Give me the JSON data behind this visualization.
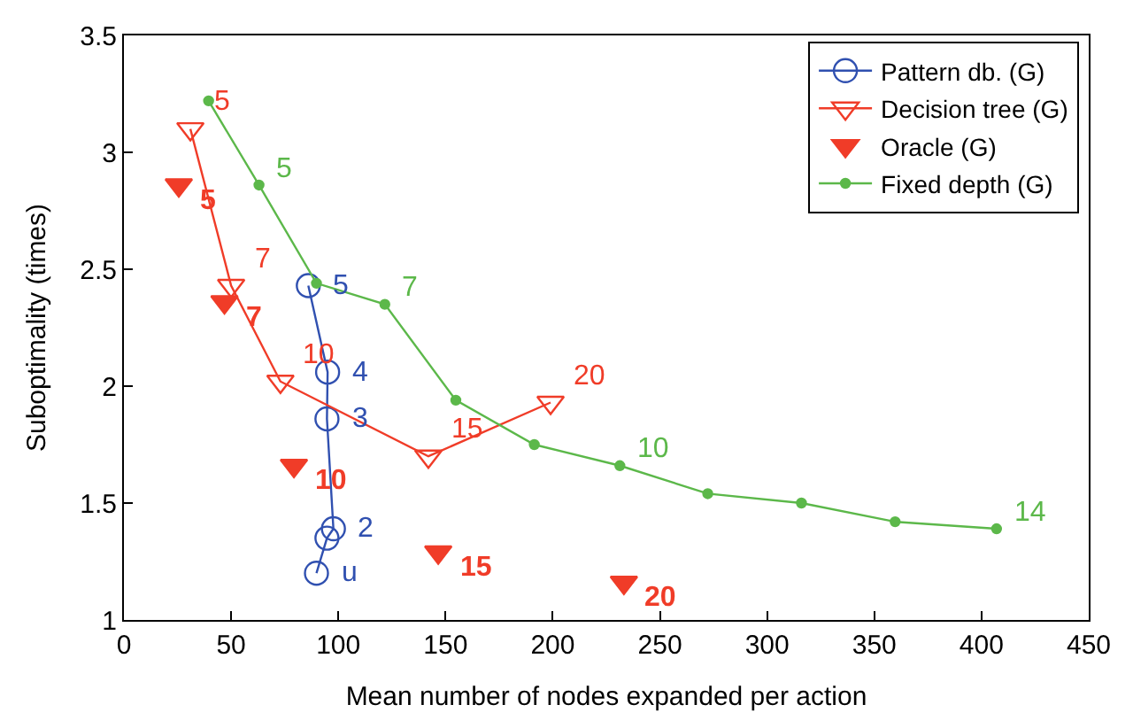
{
  "chart_data": {
    "type": "line",
    "xlabel": "Mean number of nodes expanded per action",
    "ylabel": "Suboptimality (times)",
    "xlim": [
      0,
      450
    ],
    "xticks": [
      0,
      50,
      100,
      150,
      200,
      250,
      300,
      350,
      400,
      450
    ],
    "ylim": [
      1,
      3.5
    ],
    "yticks": [
      1,
      1.5,
      2,
      2.5,
      3,
      3.5
    ],
    "legend": "top right",
    "series": [
      {
        "name": "Pattern db. (G)",
        "marker": "circle",
        "color": "#3050b0",
        "x": [
          86,
          95,
          94.7,
          97.7,
          94.7,
          89.8
        ],
        "values": [
          2.43,
          2.06,
          1.86,
          1.39,
          1.35,
          1.2
        ]
      },
      {
        "name": "Decision tree (G)",
        "marker": "triangle",
        "color": "#f03c28",
        "x": [
          31,
          50,
          73,
          142,
          199
        ],
        "values": [
          3.1,
          2.43,
          2.02,
          1.7,
          1.93
        ]
      },
      {
        "name": "Oracle (G)",
        "type": "scatter",
        "marker": "triangle",
        "color": "#f03c28",
        "x": [
          25.6,
          46.9,
          79.3,
          146.6,
          233.2
        ],
        "values": [
          2.86,
          2.36,
          1.66,
          1.29,
          1.16
        ]
      },
      {
        "name": "Fixed depth (G)",
        "marker": "point",
        "color": "#5cb84a",
        "x": [
          39.5,
          63,
          89.8,
          121.7,
          154.8,
          191.4,
          231.3,
          272.3,
          316,
          359.7,
          407
        ],
        "values": [
          3.22,
          2.86,
          2.44,
          2.35,
          1.94,
          1.75,
          1.66,
          1.54,
          1.5,
          1.42,
          1.39
        ]
      }
    ],
    "annotations": [
      {
        "text": "5",
        "x": 86,
        "y": 2.43
      },
      {
        "text": "4",
        "x": 95,
        "y": 2.06
      },
      {
        "text": "3",
        "x": 94.7,
        "y": 1.86
      },
      {
        "text": "2",
        "x": 97.7,
        "y": 1.39
      },
      {
        "text": "u",
        "x": 89.8,
        "y": 1.2
      },
      {
        "text": "5",
        "x": 31,
        "y": 3.1
      },
      {
        "text": "7",
        "x": 50,
        "y": 2.43
      },
      {
        "text": "10",
        "x": 73,
        "y": 2.02
      },
      {
        "text": "15",
        "x": 142,
        "y": 1.7
      },
      {
        "text": "20",
        "x": 199,
        "y": 1.93
      },
      {
        "text": "5",
        "x": 25.6,
        "y": 2.86
      },
      {
        "text": "7",
        "x": 46.9,
        "y": 2.36
      },
      {
        "text": "10",
        "x": 79.3,
        "y": 1.66
      },
      {
        "text": "15",
        "x": 146.6,
        "y": 1.29
      },
      {
        "text": "20",
        "x": 233.2,
        "y": 1.16
      },
      {
        "text": "5",
        "x": 63,
        "y": 2.86
      },
      {
        "text": "7",
        "x": 121.7,
        "y": 2.35
      },
      {
        "text": "10",
        "x": 231.3,
        "y": 1.66
      },
      {
        "text": "14",
        "x": 407,
        "y": 1.39
      }
    ]
  }
}
